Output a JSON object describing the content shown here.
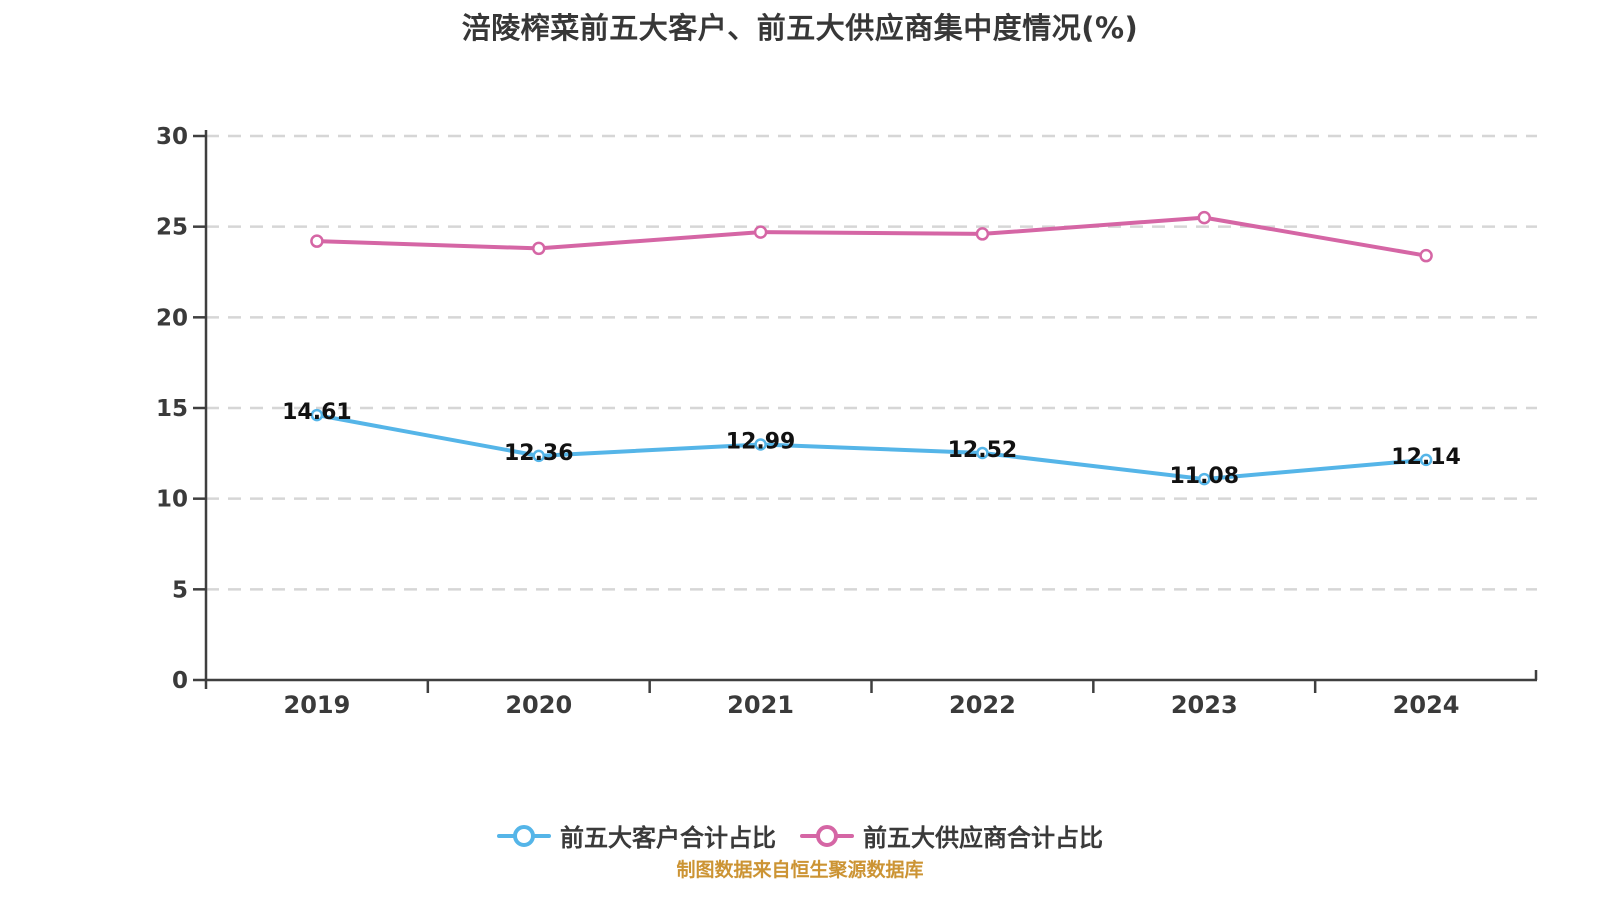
{
  "title": "涪陵榨菜前五大客户、前五大供应商集中度情况(%)",
  "source_note": "制图数据来自恒生聚源数据库",
  "chart_data": {
    "type": "line",
    "categories": [
      "2019",
      "2020",
      "2021",
      "2022",
      "2023",
      "2024"
    ],
    "series": [
      {
        "name": "前五大客户合计占比",
        "color": "#55b5e8",
        "values": [
          14.61,
          12.36,
          12.99,
          12.52,
          11.08,
          12.14
        ],
        "point_labels": [
          "14.61",
          "12.36",
          "12.99",
          "12.52",
          "11.08",
          "12.14"
        ],
        "marker": "circle-white-fill"
      },
      {
        "name": "前五大供应商合计占比",
        "color": "#d566a5",
        "values": [
          24.2,
          23.8,
          24.7,
          24.6,
          25.5,
          23.4
        ],
        "point_labels": [],
        "marker": "circle-white-fill"
      }
    ],
    "ylim": [
      0,
      30
    ],
    "yticks": [
      0,
      5,
      10,
      15,
      20,
      25,
      30
    ],
    "xlabel": "",
    "ylabel": "",
    "grid": "horizontal-dashed",
    "legend_position": "bottom",
    "colors": {
      "axis": "#3f3f3f",
      "gridline": "#d6d6d6",
      "tick_label": "#3a3a3a",
      "data_label": "#111111",
      "title": "#373737",
      "source_note": "#cc9434",
      "background": "#ffffff"
    }
  }
}
